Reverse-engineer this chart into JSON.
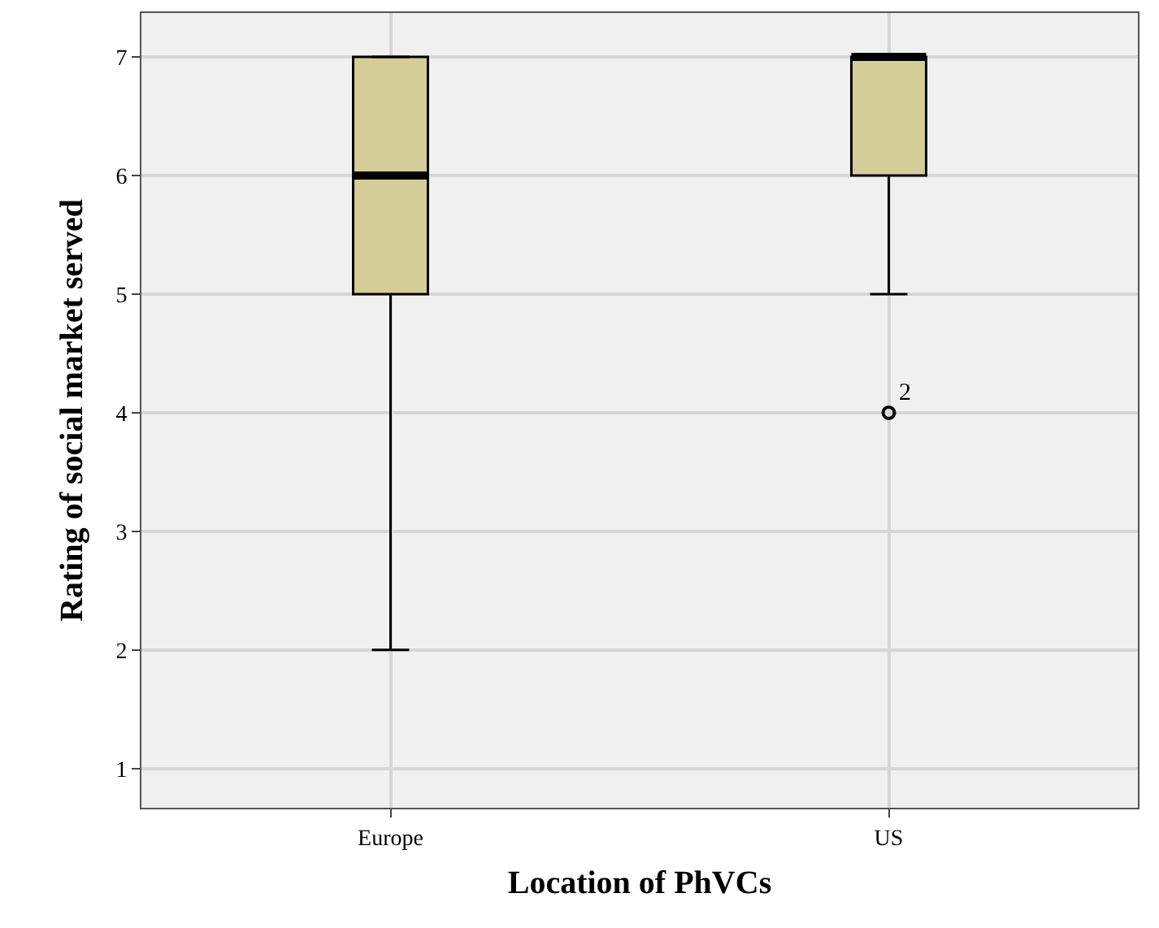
{
  "chart_data": {
    "type": "box",
    "xlabel": "Location of PhVCs",
    "ylabel": "Rating of social market served",
    "categories": [
      "Europe",
      "US"
    ],
    "boxes": [
      {
        "low": 2,
        "q1": 5,
        "median": 6,
        "q3": 7,
        "high": 7
      },
      {
        "low": 5,
        "q1": 6,
        "median": 7,
        "q3": 7,
        "high": 7,
        "outliers": [
          4
        ]
      }
    ],
    "color": "#d4cd97",
    "annotations": [
      "2"
    ],
    "ylim": [
      0.67,
      7.37
    ],
    "yticks": [
      1,
      2,
      3,
      4,
      5,
      6,
      7
    ],
    "grid": true
  }
}
